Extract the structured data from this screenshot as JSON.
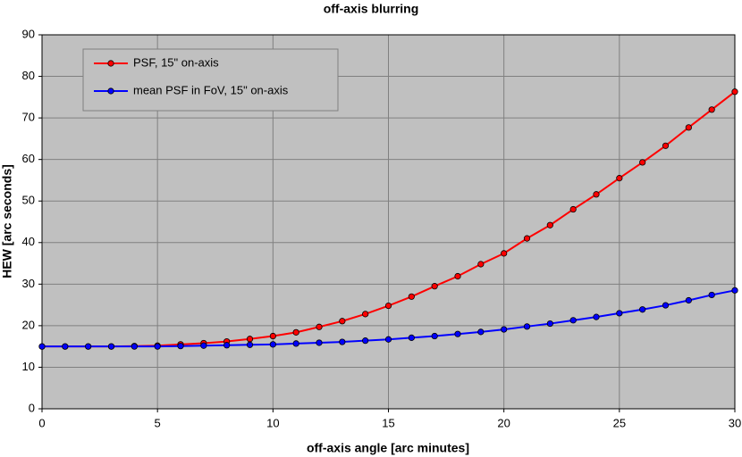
{
  "chart_data": {
    "type": "line",
    "title": "off-axis blurring",
    "x_label": "off-axis angle [arc minutes]",
    "y_label": "HEW [arc seconds]",
    "x": [
      0,
      1,
      2,
      3,
      4,
      5,
      6,
      7,
      8,
      9,
      10,
      11,
      12,
      13,
      14,
      15,
      16,
      17,
      18,
      19,
      20,
      21,
      22,
      23,
      24,
      25,
      26,
      27,
      28,
      29,
      30
    ],
    "series": [
      {
        "name": "PSF, 15\" on-axis",
        "color": "#ff0000",
        "values": [
          15,
          15,
          15,
          15,
          15.1,
          15.2,
          15.5,
          15.8,
          16.2,
          16.8,
          17.5,
          18.4,
          19.7,
          21.1,
          22.8,
          24.8,
          27.0,
          29.5,
          31.9,
          34.8,
          37.4,
          41.0,
          44.2,
          48.0,
          51.6,
          55.5,
          59.3,
          63.3,
          67.7,
          72.0,
          76.3
        ]
      },
      {
        "name": "mean PSF in FoV, 15\" on-axis",
        "color": "#0000ff",
        "values": [
          15,
          15,
          15,
          15,
          15,
          15,
          15.1,
          15.2,
          15.3,
          15.4,
          15.5,
          15.7,
          15.9,
          16.1,
          16.4,
          16.7,
          17.1,
          17.5,
          18.0,
          18.5,
          19.1,
          19.8,
          20.5,
          21.3,
          22.1,
          23.0,
          23.9,
          24.9,
          26.1,
          27.4,
          28.5
        ]
      }
    ],
    "xlim": [
      0,
      30
    ],
    "xticks": [
      0,
      5,
      10,
      15,
      20,
      25,
      30
    ],
    "ylim": [
      0,
      90
    ],
    "yticks": [
      0,
      10,
      20,
      30,
      40,
      50,
      60,
      70,
      80,
      90
    ],
    "grid": true,
    "legend": "upper left"
  }
}
